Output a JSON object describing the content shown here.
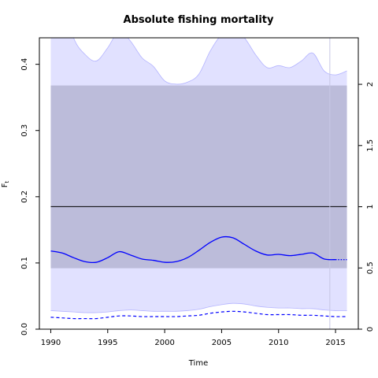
{
  "chart_data": {
    "type": "line",
    "title": "Absolute fishing mortality",
    "xlabel": "Time",
    "ylabel": "F",
    "ylabel_subscript": "t",
    "x_ticks": [
      1990,
      1995,
      2000,
      2005,
      2010,
      2015
    ],
    "y_ticks": [
      "0.0",
      "0.1",
      "0.2",
      "0.3",
      "0.4"
    ],
    "y2_ticks": [
      "0",
      "0.5",
      "1",
      "1.5",
      "2"
    ],
    "xlim": [
      1989,
      2017
    ],
    "ylim": [
      0,
      0.44
    ],
    "y2lim": [
      0,
      2.38
    ],
    "grid": false,
    "colors": {
      "estimate": "#0000ff",
      "band_fill": "#e1e1ff",
      "band_edge": "#b4b4ff",
      "ref_band": "#bcbcda",
      "ref_line": "#000000",
      "marker_line": "#c8c8e6"
    },
    "reference_band": {
      "x": [
        1990,
        2016
      ],
      "lower": 0.092,
      "upper": 0.368
    },
    "reference_line": {
      "x": [
        1990,
        2016
      ],
      "y": 0.185
    },
    "marker_year": 2014.5,
    "series": [
      {
        "role": "upper_ci",
        "x": [
          1990,
          1991,
          1992,
          1993,
          1994,
          1995,
          1996,
          1997,
          1998,
          1999,
          2000,
          2001,
          2002,
          2003,
          2004,
          2005,
          2006,
          2007,
          2008,
          2009,
          2010,
          2011,
          2012,
          2013,
          2014,
          2015,
          2016
        ],
        "values": [
          0.55,
          0.5,
          0.44,
          0.415,
          0.405,
          0.425,
          0.45,
          0.435,
          0.41,
          0.397,
          0.375,
          0.37,
          0.373,
          0.385,
          0.42,
          0.445,
          0.452,
          0.44,
          0.414,
          0.395,
          0.398,
          0.395,
          0.405,
          0.417,
          0.39,
          0.384,
          0.39
        ]
      },
      {
        "role": "lower_ci",
        "x": [
          1990,
          1991,
          1992,
          1993,
          1994,
          1995,
          1996,
          1997,
          1998,
          1999,
          2000,
          2001,
          2002,
          2003,
          2004,
          2005,
          2006,
          2007,
          2008,
          2009,
          2010,
          2011,
          2012,
          2013,
          2014,
          2015,
          2016
        ],
        "values": [
          0.028,
          0.027,
          0.026,
          0.025,
          0.025,
          0.026,
          0.028,
          0.029,
          0.028,
          0.027,
          0.027,
          0.027,
          0.028,
          0.03,
          0.034,
          0.037,
          0.039,
          0.038,
          0.035,
          0.033,
          0.032,
          0.032,
          0.031,
          0.031,
          0.029,
          0.028,
          0.028
        ]
      },
      {
        "role": "estimate",
        "x": [
          1990,
          1991,
          1992,
          1993,
          1994,
          1995,
          1996,
          1997,
          1998,
          1999,
          2000,
          2001,
          2002,
          2003,
          2004,
          2005,
          2006,
          2007,
          2008,
          2009,
          2010,
          2011,
          2012,
          2013,
          2014,
          2015,
          2016
        ],
        "values": [
          0.118,
          0.115,
          0.108,
          0.102,
          0.101,
          0.108,
          0.117,
          0.112,
          0.106,
          0.104,
          0.101,
          0.102,
          0.108,
          0.119,
          0.131,
          0.139,
          0.138,
          0.128,
          0.118,
          0.112,
          0.113,
          0.111,
          0.113,
          0.115,
          0.106,
          0.105,
          0.105
        ]
      },
      {
        "role": "prior_mean",
        "x": [
          1990,
          1991,
          1992,
          1993,
          1994,
          1995,
          1996,
          1997,
          1998,
          1999,
          2000,
          2001,
          2002,
          2003,
          2004,
          2005,
          2006,
          2007,
          2008,
          2009,
          2010,
          2011,
          2012,
          2013,
          2014,
          2015,
          2016
        ],
        "values": [
          0.018,
          0.017,
          0.016,
          0.016,
          0.016,
          0.018,
          0.02,
          0.02,
          0.019,
          0.019,
          0.019,
          0.019,
          0.02,
          0.021,
          0.024,
          0.026,
          0.027,
          0.026,
          0.024,
          0.022,
          0.022,
          0.022,
          0.021,
          0.021,
          0.02,
          0.019,
          0.019
        ]
      }
    ]
  }
}
